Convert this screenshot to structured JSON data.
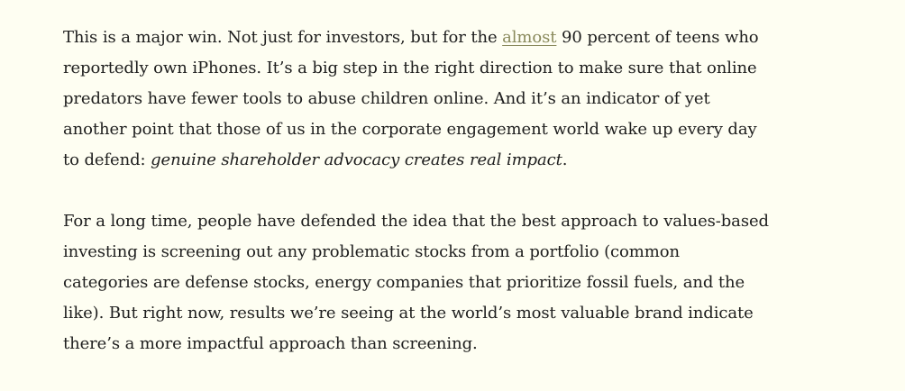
{
  "colors": {
    "background": "#fefef2",
    "text": "#1e1e1e",
    "link": "#8a8a5c"
  },
  "paragraphs": [
    {
      "lines": [
        {
          "before": "This is a major win. Not just for investors, but for the ",
          "link": "almost",
          "after": " 90 percent of teens who"
        },
        {
          "text": "reportedly own iPhones. It’s a big step in the right direction to make sure that online"
        },
        {
          "text": "predators have fewer tools to abuse children online. And it’s an indicator of yet"
        },
        {
          "text": "another point that those of us in the corporate engagement world wake up every day"
        },
        {
          "before": "to defend: ",
          "emphasis": "genuine shareholder advocacy creates real impact",
          "after": "."
        }
      ]
    },
    {
      "lines": [
        {
          "text": "For a long time, people have defended the idea that the best approach to values-based"
        },
        {
          "text": "investing is screening out any problematic stocks from a portfolio (common"
        },
        {
          "text": "categories are defense stocks, energy companies that prioritize fossil fuels, and the"
        },
        {
          "text": "like). But right now, results we’re seeing at the world’s most valuable brand indicate"
        },
        {
          "text": "there’s a more impactful approach than screening."
        }
      ]
    }
  ]
}
